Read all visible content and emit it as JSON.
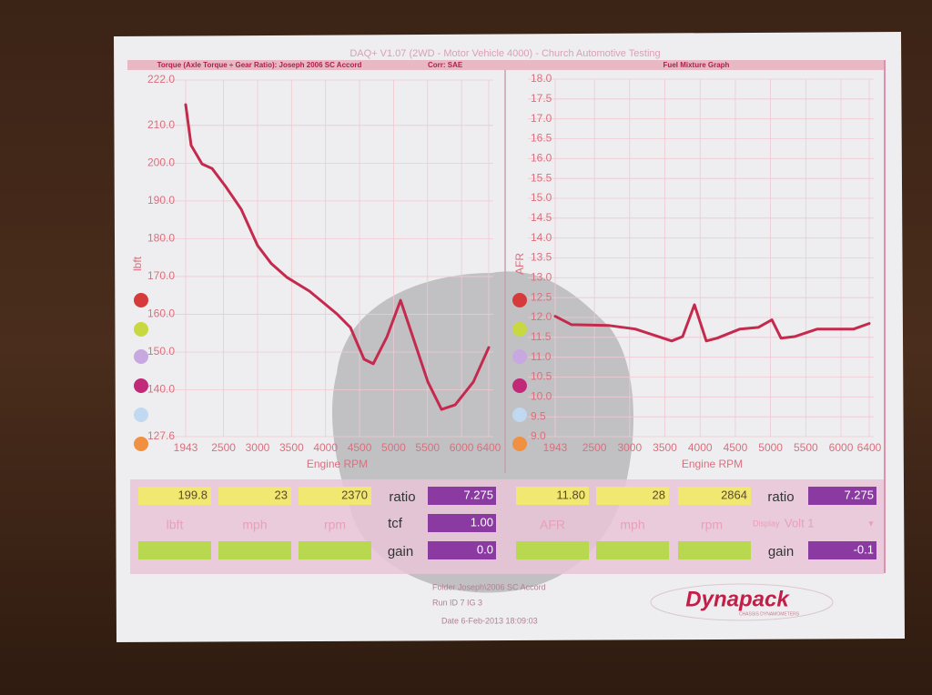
{
  "header": {
    "title": "DAQ+ V1.07 (2WD - Motor Vehicle 4000) - Church Automotive Testing"
  },
  "chart_data": [
    {
      "type": "line",
      "title": "Torque (Axle Torque ÷ Gear Ratio): Joseph 2006 SC Accord",
      "subtitle": "Corr: SAE",
      "x_label": "Engine RPM",
      "y_label": "lbft",
      "x": [
        1943,
        2023,
        2184,
        2331,
        2532,
        2760,
        3001,
        3202,
        3430,
        3764,
        4166,
        4366,
        4567,
        4701,
        4902,
        5103,
        5304,
        5505,
        5706,
        5906,
        6174,
        6400
      ],
      "series": [
        {
          "name": "Torque",
          "color": "#c42a4e",
          "values": [
            215.5,
            204.7,
            199.8,
            198.6,
            193.8,
            187.8,
            178.2,
            173.4,
            169.8,
            166.1,
            160.1,
            156.5,
            148.1,
            146.9,
            154.0,
            163.7,
            152.9,
            142.1,
            134.8,
            136.0,
            142.1,
            151.2
          ]
        }
      ],
      "xlim": [
        1943,
        6400
      ],
      "xticks": [
        1943,
        2500,
        3000,
        3500,
        4000,
        4500,
        5000,
        5500,
        6000,
        6400
      ],
      "ylim": [
        127.6,
        222
      ],
      "yticks": [
        {
          "value": 222,
          "label": "222.0"
        },
        {
          "value": 210,
          "label": "210.0"
        },
        {
          "value": 200,
          "label": "200.0"
        },
        {
          "value": 190,
          "label": "190.0"
        },
        {
          "value": 180,
          "label": "180.0"
        },
        {
          "value": 170,
          "label": "170.0"
        },
        {
          "value": 160,
          "label": "160.0"
        },
        {
          "value": 150,
          "label": "150.0"
        },
        {
          "value": 140,
          "label": "140.0"
        },
        {
          "value": 127.6,
          "label": "127.6"
        }
      ],
      "grid": true
    },
    {
      "type": "line",
      "title": "Fuel Mixture Graph",
      "x_label": "Engine RPM",
      "y_label": "AFR",
      "x": [
        1943,
        2176,
        2693,
        3080,
        3597,
        3752,
        3920,
        4088,
        4243,
        4566,
        4825,
        5019,
        5148,
        5342,
        5665,
        6181,
        6400
      ],
      "series": [
        {
          "name": "AFR",
          "color": "#c42a4e",
          "values": [
            12.03,
            11.82,
            11.8,
            11.71,
            11.41,
            11.52,
            12.32,
            11.41,
            11.48,
            11.71,
            11.75,
            11.94,
            11.48,
            11.52,
            11.71,
            11.71,
            11.85
          ]
        }
      ],
      "xlim": [
        1943,
        6400
      ],
      "xticks": [
        1943,
        2500,
        3000,
        3500,
        4000,
        4500,
        5000,
        5500,
        6000,
        6400
      ],
      "ylim": [
        9,
        18
      ],
      "yticks": [
        {
          "value": 18,
          "label": "18.0"
        },
        {
          "value": 17.5,
          "label": "17.5"
        },
        {
          "value": 17,
          "label": "17.0"
        },
        {
          "value": 16.5,
          "label": "16.5"
        },
        {
          "value": 16,
          "label": "16.0"
        },
        {
          "value": 15.5,
          "label": "15.5"
        },
        {
          "value": 15,
          "label": "15.0"
        },
        {
          "value": 14.5,
          "label": "14.5"
        },
        {
          "value": 14,
          "label": "14.0"
        },
        {
          "value": 13.5,
          "label": "13.5"
        },
        {
          "value": 13,
          "label": "13.0"
        },
        {
          "value": 12.5,
          "label": "12.5"
        },
        {
          "value": 12,
          "label": "12.0"
        },
        {
          "value": 11.5,
          "label": "11.5"
        },
        {
          "value": 11,
          "label": "11.0"
        },
        {
          "value": 10.5,
          "label": "10.5"
        },
        {
          "value": 10,
          "label": "10.0"
        },
        {
          "value": 9.5,
          "label": "9.5"
        },
        {
          "value": 9,
          "label": "9.0"
        }
      ],
      "grid": true
    }
  ],
  "panel": {
    "left": {
      "torque": "199.8",
      "mph": "23",
      "rpm": "2370",
      "ratio_label": "ratio",
      "ratio": "7.275",
      "units": [
        "lbft",
        "mph",
        "rpm"
      ],
      "tcf_label": "tcf",
      "tcf": "1.00",
      "gain_label": "gain",
      "gain": "0.0"
    },
    "right": {
      "afr": "11.80",
      "mph": "28",
      "rpm": "2864",
      "ratio_label": "ratio",
      "ratio": "7.275",
      "units": [
        "AFR",
        "mph",
        "rpm"
      ],
      "display_label": "Display",
      "display": "Volt 1",
      "gain_label": "gain",
      "gain": "-0.1"
    }
  },
  "footer": {
    "folder": "Folder  Joseph\\2006 SC Accord",
    "run": "Run ID 7 IG 3",
    "date": "Date  6-Feb-2013 18:09:03"
  },
  "logo": {
    "name": "Dynapack",
    "tagline": "CHASSIS DYNAMOMETERS"
  }
}
